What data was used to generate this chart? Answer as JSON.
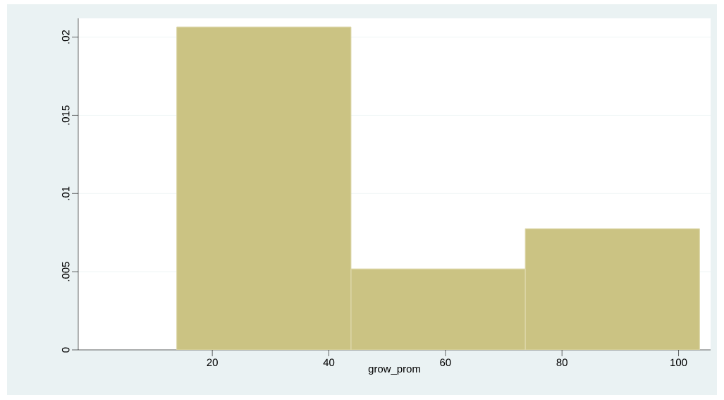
{
  "chart_data": {
    "type": "histogram",
    "xlabel": "grow_prom",
    "bins": [
      13.9,
      43.8,
      73.7,
      103.6
    ],
    "values": [
      0.02065,
      0.00518,
      0.00775
    ],
    "color": "#cbc383",
    "xlim": [
      -3,
      105.5
    ],
    "xticks": [
      20,
      40,
      60,
      80,
      100
    ],
    "ylim": [
      0,
      0.0212
    ],
    "yticks": [
      0,
      {
        "value": 0.005,
        "label": ".005"
      },
      {
        "value": 0.01,
        "label": ".01"
      },
      {
        "value": 0.015,
        "label": ".015"
      },
      {
        "value": 0.02,
        "label": ".02"
      }
    ],
    "grid": "y"
  }
}
